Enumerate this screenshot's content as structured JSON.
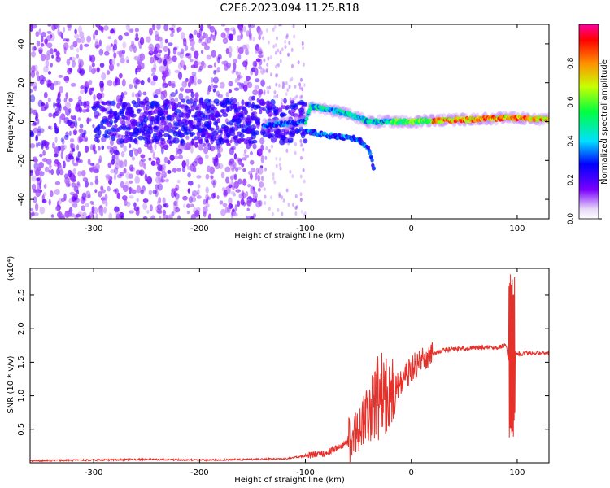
{
  "title": "C2E6.2023.094.11.25.R18",
  "chart_data": [
    {
      "type": "heatmap",
      "xlabel": "Height of straight line (km)",
      "ylabel": "Frequency (Hz)",
      "xlim": [
        -360,
        130
      ],
      "ylim": [
        -50,
        50
      ],
      "xticks": [
        -300,
        -200,
        -100,
        0,
        100
      ],
      "yticks": [
        -40,
        -20,
        0,
        20,
        40
      ],
      "colorbar": {
        "label": "Normalized spectral amplitude",
        "range": [
          0,
          1
        ],
        "ticks": [
          "0.0",
          "0.2",
          "0.4",
          "0.6",
          "0.8"
        ]
      },
      "features": [
        {
          "name": "broadband noise",
          "x_range": [
            -360,
            -140
          ],
          "freq_range": [
            -50,
            50
          ]
        },
        {
          "name": "main trace",
          "points": [
            [
              -140,
              -2
            ],
            [
              -100,
              0
            ],
            [
              -95,
              8
            ],
            [
              -60,
              4
            ],
            [
              -40,
              0
            ],
            [
              -20,
              0
            ],
            [
              0,
              0
            ],
            [
              50,
              1
            ],
            [
              90,
              2
            ],
            [
              130,
              1
            ]
          ]
        },
        {
          "name": "lower trace",
          "points": [
            [
              -100,
              -5
            ],
            [
              -80,
              -7
            ],
            [
              -50,
              -9
            ],
            [
              -40,
              -14
            ],
            [
              -35,
              -25
            ]
          ]
        }
      ]
    },
    {
      "type": "line",
      "xlabel": "Height of straight line (km)",
      "ylabel": "SNR (10 * v/v)",
      "yscale_label": "(x10⁴)",
      "xlim": [
        -360,
        130
      ],
      "ylim": [
        0,
        2.9
      ],
      "xticks": [
        -300,
        -200,
        -100,
        0,
        100
      ],
      "yticks": [
        "0.5",
        "1.0",
        "1.5",
        "2.0",
        "2.5"
      ],
      "series": [
        {
          "color": "#e8302a",
          "x": [
            -360,
            -300,
            -250,
            -200,
            -150,
            -120,
            -100,
            -80,
            -60,
            -50,
            -40,
            -30,
            -20,
            -10,
            0,
            10,
            20,
            30,
            40,
            60,
            80,
            90,
            94,
            96,
            100,
            110,
            130
          ],
          "y": [
            0.03,
            0.04,
            0.05,
            0.04,
            0.05,
            0.06,
            0.1,
            0.15,
            0.3,
            0.5,
            0.8,
            1.0,
            1.05,
            1.2,
            1.4,
            1.55,
            1.62,
            1.68,
            1.69,
            1.72,
            1.72,
            1.75,
            1.2,
            1.65,
            1.62,
            1.64,
            1.63
          ]
        }
      ]
    }
  ]
}
